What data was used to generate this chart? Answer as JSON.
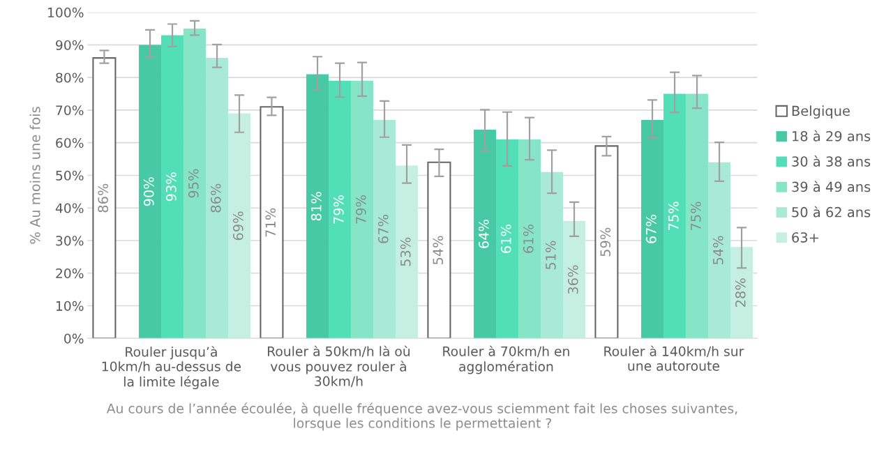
{
  "chart_data": {
    "type": "bar",
    "ylabel": "% Au moins une fois",
    "xlabel": "Au cours de l’année écoulée, à quelle fréquence avez-vous sciemment fait les choses suivantes,\nlorsque les conditions le permettaient ?",
    "categories": [
      "Rouler jusqu’à\n10km/h au-dessus de\nla limite légale",
      "Rouler à 50km/h là où\nvous pouvez rouler à\n30km/h",
      "Rouler à 70km/h en\nagglomération",
      "Rouler à 140km/h sur\nune autoroute"
    ],
    "series": [
      {
        "name": "Belgique",
        "color": "#ffffff",
        "values": [
          86,
          71,
          54,
          59
        ],
        "value_labels": [
          "86%",
          "71%",
          "54%",
          "59%"
        ],
        "errors": [
          [
            84.4,
            88.3
          ],
          [
            68.4,
            73.9
          ],
          [
            49.7,
            58.0
          ],
          [
            56.0,
            61.9
          ]
        ]
      },
      {
        "name": "18 à 29 ans",
        "color": "#48c9a5",
        "values": [
          90,
          81,
          64,
          67
        ],
        "value_labels": [
          "90%",
          "81%",
          "64%",
          "67%"
        ],
        "errors": [
          [
            86.3,
            94.6
          ],
          [
            76.4,
            86.4
          ],
          [
            57.5,
            70.1
          ],
          [
            61.5,
            73.1
          ]
        ]
      },
      {
        "name": "30 à 38 ans",
        "color": "#52dfb8",
        "values": [
          93,
          79,
          61,
          75
        ],
        "value_labels": [
          "93%",
          "79%",
          "61%",
          "75%"
        ],
        "errors": [
          [
            89.5,
            96.4
          ],
          [
            74.0,
            84.4
          ],
          [
            52.9,
            69.4
          ],
          [
            69.3,
            81.6
          ]
        ]
      },
      {
        "name": "39 à 49 ans",
        "color": "#85e5c6",
        "values": [
          95,
          79,
          61,
          75
        ],
        "value_labels": [
          "95%",
          "79%",
          "61%",
          "75%"
        ],
        "errors": [
          [
            93.0,
            97.4
          ],
          [
            74.3,
            84.6
          ],
          [
            54.8,
            67.7
          ],
          [
            70.6,
            80.6
          ]
        ]
      },
      {
        "name": "50 à 62 ans",
        "color": "#a8ead5",
        "values": [
          86,
          67,
          51,
          54
        ],
        "value_labels": [
          "86%",
          "67%",
          "51%",
          "54%"
        ],
        "errors": [
          [
            83.1,
            90.1
          ],
          [
            61.7,
            72.8
          ],
          [
            44.5,
            57.7
          ],
          [
            48.2,
            60.1
          ]
        ]
      },
      {
        "name": "63+",
        "color": "#c5efe0",
        "values": [
          69,
          53,
          36,
          28
        ],
        "value_labels": [
          "69%",
          "53%",
          "36%",
          "28%"
        ],
        "errors": [
          [
            63.2,
            74.6
          ],
          [
            47.6,
            59.3
          ],
          [
            31.3,
            41.8
          ],
          [
            21.6,
            34.0
          ]
        ]
      }
    ],
    "ylim": [
      0,
      100
    ],
    "yticks": [
      {
        "value": 0,
        "label": "0%"
      },
      {
        "value": 10,
        "label": "10%"
      },
      {
        "value": 20,
        "label": "20%"
      },
      {
        "value": 30,
        "label": "30%"
      },
      {
        "value": 40,
        "label": "40%"
      },
      {
        "value": 50,
        "label": "50%"
      },
      {
        "value": 60,
        "label": "60%"
      },
      {
        "value": 70,
        "label": "70%"
      },
      {
        "value": 80,
        "label": "80%"
      },
      {
        "value": 90,
        "label": "90%"
      },
      {
        "value": 100,
        "label": "100%"
      }
    ],
    "grid": "y",
    "legend": "right"
  }
}
